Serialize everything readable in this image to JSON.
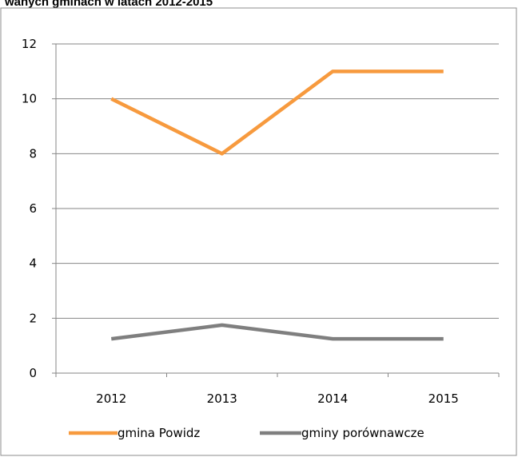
{
  "title_partial": "wanych gminach w latach 2012-2015",
  "chart_data": {
    "type": "line",
    "categories": [
      "2012",
      "2013",
      "2014",
      "2015"
    ],
    "series": [
      {
        "name": "gmina Powidz",
        "values": [
          10,
          8,
          11,
          11
        ],
        "color": "#f79a3e"
      },
      {
        "name": "gminy porównawcze",
        "values": [
          1.25,
          1.75,
          1.25,
          1.25
        ],
        "color": "#7f7f7f"
      }
    ],
    "ylim": [
      0,
      12
    ],
    "yticks": [
      0,
      2,
      4,
      6,
      8,
      10,
      12
    ],
    "grid": true,
    "legend": "bottom"
  }
}
